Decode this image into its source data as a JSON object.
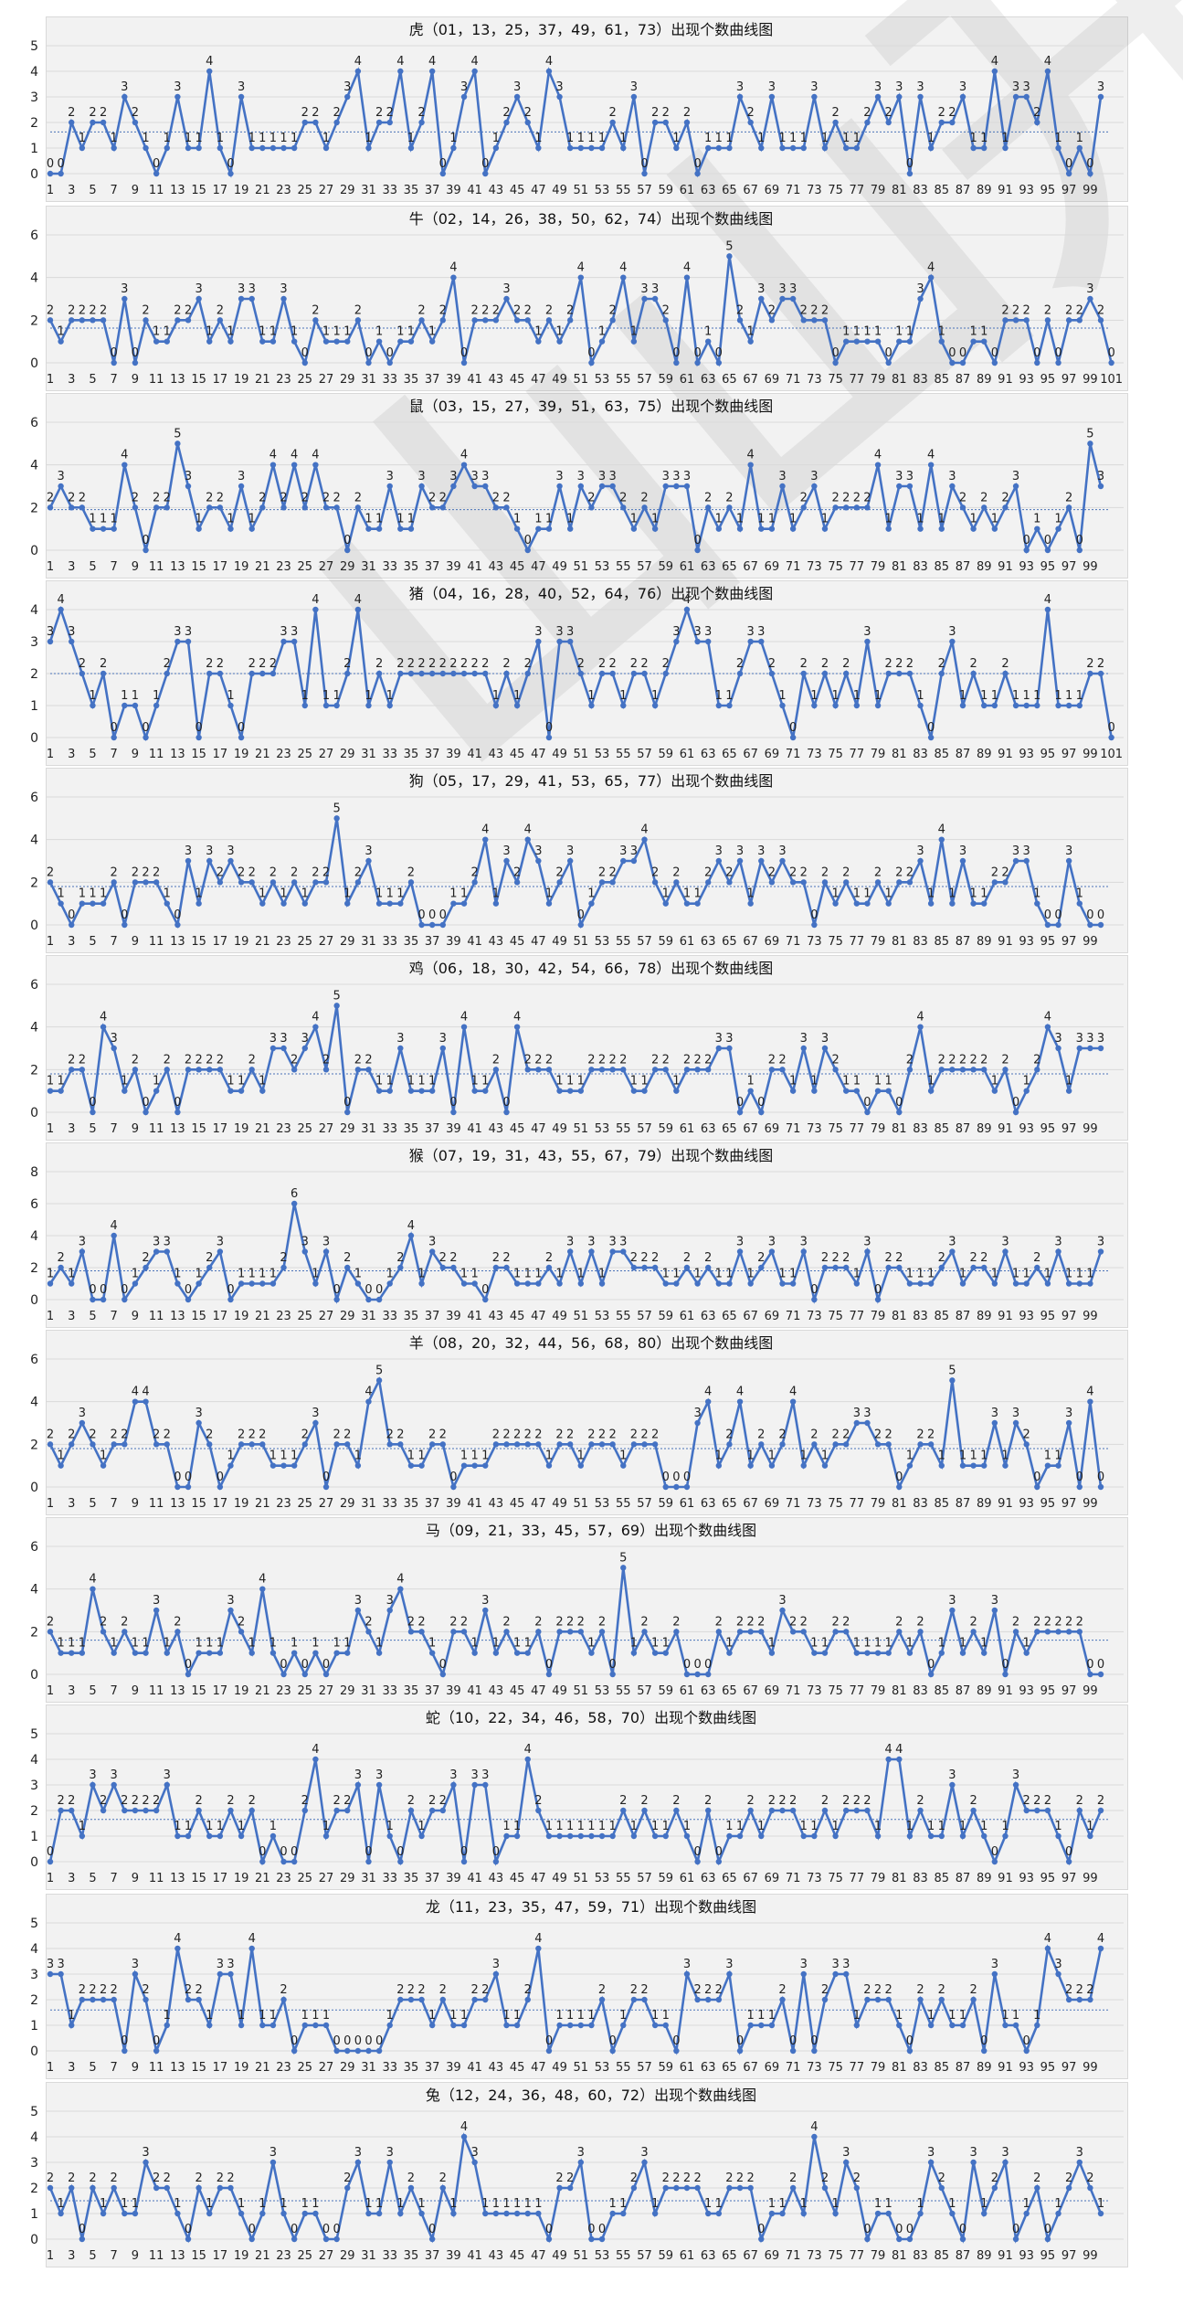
{
  "watermark": "山山开奖",
  "chart_data": [
    {
      "type": "line",
      "title": "虎（01，13，25，37，49，61，73）出现个数曲线图",
      "ylim": [
        0,
        5
      ],
      "yticks": [
        0,
        1,
        2,
        3,
        4,
        5
      ],
      "avg": 1.63,
      "values": [
        0,
        0,
        2,
        1,
        2,
        2,
        1,
        3,
        2,
        1,
        0,
        1,
        3,
        1,
        1,
        4,
        1,
        0,
        3,
        1,
        1,
        1,
        1,
        1,
        2,
        2,
        1,
        2,
        3,
        4,
        1,
        2,
        2,
        4,
        1,
        2,
        4,
        0,
        1,
        3,
        4,
        0,
        1,
        2,
        3,
        2,
        1,
        4,
        3,
        1,
        1,
        1,
        1,
        2,
        1,
        3,
        0,
        2,
        2,
        1,
        2,
        0,
        1,
        1,
        1,
        3,
        2,
        1,
        3,
        1,
        1,
        1,
        3,
        1,
        2,
        1,
        1,
        2,
        3,
        2,
        3,
        0,
        3,
        1,
        2,
        2,
        3,
        1,
        1,
        4,
        1,
        3,
        3,
        2,
        4,
        1,
        0,
        1,
        0,
        3
      ]
    },
    {
      "type": "line",
      "title": "牛（02，14，26，38，50，62，74）出现个数曲线图",
      "ylim": [
        0,
        6
      ],
      "yticks": [
        0,
        2,
        4,
        6
      ],
      "avg": 1.63,
      "values": [
        2,
        1,
        2,
        2,
        2,
        2,
        0,
        3,
        0,
        2,
        1,
        1,
        2,
        2,
        3,
        1,
        2,
        1,
        3,
        3,
        1,
        1,
        3,
        1,
        0,
        2,
        1,
        1,
        1,
        2,
        0,
        1,
        0,
        1,
        1,
        2,
        1,
        2,
        4,
        0,
        2,
        2,
        2,
        3,
        2,
        2,
        1,
        2,
        1,
        2,
        4,
        0,
        1,
        2,
        4,
        1,
        3,
        3,
        2,
        0,
        4,
        0,
        1,
        0,
        5,
        2,
        1,
        3,
        2,
        3,
        3,
        2,
        2,
        2,
        0,
        1,
        1,
        1,
        1,
        0,
        1,
        1,
        3,
        4,
        1,
        0,
        0,
        1,
        1,
        0,
        2,
        2,
        2,
        0,
        2,
        0,
        2,
        2,
        3,
        2,
        0
      ]
    },
    {
      "type": "line",
      "title": "鼠（03，15，27，39，51，63，75）出现个数曲线图",
      "ylim": [
        0,
        6
      ],
      "yticks": [
        0,
        2,
        4,
        6
      ],
      "avg": 1.9,
      "values": [
        2,
        3,
        2,
        2,
        1,
        1,
        1,
        4,
        2,
        0,
        2,
        2,
        5,
        3,
        1,
        2,
        2,
        1,
        3,
        1,
        2,
        4,
        2,
        4,
        2,
        4,
        2,
        2,
        0,
        2,
        1,
        1,
        3,
        1,
        1,
        3,
        2,
        2,
        3,
        4,
        3,
        3,
        2,
        2,
        1,
        0,
        1,
        1,
        3,
        1,
        3,
        2,
        3,
        3,
        2,
        1,
        2,
        1,
        3,
        3,
        3,
        0,
        2,
        1,
        2,
        1,
        4,
        1,
        1,
        3,
        1,
        2,
        3,
        1,
        2,
        2,
        2,
        2,
        4,
        1,
        3,
        3,
        1,
        4,
        1,
        3,
        2,
        1,
        2,
        1,
        2,
        3,
        0,
        1,
        0,
        1,
        2,
        0,
        5,
        3
      ]
    },
    {
      "type": "line",
      "title": "猪（04，16，28，40，52，64，76）出现个数曲线图",
      "ylim": [
        0,
        4
      ],
      "yticks": [
        0,
        1,
        2,
        3,
        4
      ],
      "avg": 2,
      "values": [
        3,
        4,
        3,
        2,
        1,
        2,
        0,
        1,
        1,
        0,
        1,
        2,
        3,
        3,
        0,
        2,
        2,
        1,
        0,
        2,
        2,
        2,
        3,
        3,
        1,
        4,
        1,
        1,
        2,
        4,
        1,
        2,
        1,
        2,
        2,
        2,
        2,
        2,
        2,
        2,
        2,
        2,
        1,
        2,
        1,
        2,
        3,
        0,
        3,
        3,
        2,
        1,
        2,
        2,
        1,
        2,
        2,
        1,
        2,
        3,
        4,
        3,
        3,
        1,
        1,
        2,
        3,
        3,
        2,
        1,
        0,
        2,
        1,
        2,
        1,
        2,
        1,
        3,
        1,
        2,
        2,
        2,
        1,
        0,
        2,
        3,
        1,
        2,
        1,
        1,
        2,
        1,
        1,
        1,
        4,
        1,
        1,
        1,
        2,
        2,
        0
      ]
    },
    {
      "type": "line",
      "title": "狗（05，17，29，41，53，65，77）出现个数曲线图",
      "ylim": [
        0,
        6
      ],
      "yticks": [
        0,
        2,
        4,
        6
      ],
      "avg": 1.8,
      "values": [
        2,
        1,
        0,
        1,
        1,
        1,
        2,
        0,
        2,
        2,
        2,
        1,
        0,
        3,
        1,
        3,
        2,
        3,
        2,
        2,
        1,
        2,
        1,
        2,
        1,
        2,
        2,
        5,
        1,
        2,
        3,
        1,
        1,
        1,
        2,
        0,
        0,
        0,
        1,
        1,
        2,
        4,
        1,
        3,
        2,
        4,
        3,
        1,
        2,
        3,
        0,
        1,
        2,
        2,
        3,
        3,
        4,
        2,
        1,
        2,
        1,
        1,
        2,
        3,
        2,
        3,
        1,
        3,
        2,
        3,
        2,
        2,
        0,
        2,
        1,
        2,
        1,
        1,
        2,
        1,
        2,
        2,
        3,
        1,
        4,
        1,
        3,
        1,
        1,
        2,
        2,
        3,
        3,
        1,
        0,
        0,
        3,
        1,
        0,
        0
      ]
    },
    {
      "type": "line",
      "title": "鸡（06，18，30，42，54，66，78）出现个数曲线图",
      "ylim": [
        0,
        6
      ],
      "yticks": [
        0,
        2,
        4,
        6
      ],
      "avg": 1.8,
      "values": [
        1,
        1,
        2,
        2,
        0,
        4,
        3,
        1,
        2,
        0,
        1,
        2,
        0,
        2,
        2,
        2,
        2,
        1,
        1,
        2,
        1,
        3,
        3,
        2,
        3,
        4,
        2,
        5,
        0,
        2,
        2,
        1,
        1,
        3,
        1,
        1,
        1,
        3,
        0,
        4,
        1,
        1,
        2,
        0,
        4,
        2,
        2,
        2,
        1,
        1,
        1,
        2,
        2,
        2,
        2,
        1,
        1,
        2,
        2,
        1,
        2,
        2,
        2,
        3,
        3,
        0,
        1,
        0,
        2,
        2,
        1,
        3,
        1,
        3,
        2,
        1,
        1,
        0,
        1,
        1,
        0,
        2,
        4,
        1,
        2,
        2,
        2,
        2,
        2,
        1,
        2,
        0,
        1,
        2,
        4,
        3,
        1,
        3,
        3,
        3
      ]
    },
    {
      "type": "line",
      "title": "猴（07，19，31，43，55，67，79）出现个数曲线图",
      "ylim": [
        0,
        8
      ],
      "yticks": [
        0,
        2,
        4,
        6,
        8
      ],
      "avg": 1.8,
      "values": [
        1,
        2,
        1,
        3,
        0,
        0,
        4,
        0,
        1,
        2,
        3,
        3,
        1,
        0,
        1,
        2,
        3,
        0,
        1,
        1,
        1,
        1,
        2,
        6,
        3,
        1,
        3,
        0,
        2,
        1,
        0,
        0,
        1,
        2,
        4,
        1,
        3,
        2,
        2,
        1,
        1,
        0,
        2,
        2,
        1,
        1,
        1,
        2,
        1,
        3,
        1,
        3,
        1,
        3,
        3,
        2,
        2,
        2,
        1,
        1,
        2,
        1,
        2,
        1,
        1,
        3,
        1,
        2,
        3,
        1,
        1,
        3,
        0,
        2,
        2,
        2,
        1,
        3,
        0,
        2,
        2,
        1,
        1,
        1,
        2,
        3,
        1,
        2,
        2,
        1,
        3,
        1,
        1,
        2,
        1,
        3,
        1,
        1,
        1,
        3
      ]
    },
    {
      "type": "line",
      "title": "羊（08，20，32，44，56，68，80）出现个数曲线图",
      "ylim": [
        0,
        6
      ],
      "yticks": [
        0,
        2,
        4,
        6
      ],
      "avg": 1.8,
      "values": [
        2,
        1,
        2,
        3,
        2,
        1,
        2,
        2,
        4,
        4,
        2,
        2,
        0,
        0,
        3,
        2,
        0,
        1,
        2,
        2,
        2,
        1,
        1,
        1,
        2,
        3,
        0,
        2,
        2,
        1,
        4,
        5,
        2,
        2,
        1,
        1,
        2,
        2,
        0,
        1,
        1,
        1,
        2,
        2,
        2,
        2,
        2,
        1,
        2,
        2,
        1,
        2,
        2,
        2,
        1,
        2,
        2,
        2,
        0,
        0,
        0,
        3,
        4,
        1,
        2,
        4,
        1,
        2,
        1,
        2,
        4,
        1,
        2,
        1,
        2,
        2,
        3,
        3,
        2,
        2,
        0,
        1,
        2,
        2,
        1,
        5,
        1,
        1,
        1,
        3,
        1,
        3,
        2,
        0,
        1,
        1,
        3,
        0,
        4,
        0
      ]
    },
    {
      "type": "line",
      "title": "马（09，21，33，45，57，69）出现个数曲线图",
      "ylim": [
        0,
        6
      ],
      "yticks": [
        0,
        2,
        4,
        6
      ],
      "avg": 1.6,
      "values": [
        2,
        1,
        1,
        1,
        4,
        2,
        1,
        2,
        1,
        1,
        3,
        1,
        2,
        0,
        1,
        1,
        1,
        3,
        2,
        1,
        4,
        1,
        0,
        1,
        0,
        1,
        0,
        1,
        1,
        3,
        2,
        1,
        3,
        4,
        2,
        2,
        1,
        0,
        2,
        2,
        1,
        3,
        1,
        2,
        1,
        1,
        2,
        0,
        2,
        2,
        2,
        1,
        2,
        0,
        5,
        1,
        2,
        1,
        1,
        2,
        0,
        0,
        0,
        2,
        1,
        2,
        2,
        2,
        1,
        3,
        2,
        2,
        1,
        1,
        2,
        2,
        1,
        1,
        1,
        1,
        2,
        1,
        2,
        0,
        1,
        3,
        1,
        2,
        1,
        3,
        0,
        2,
        1,
        2,
        2,
        2,
        2,
        2,
        0,
        0
      ]
    },
    {
      "type": "line",
      "title": "蛇（10，22，34，46，58，70）出现个数曲线图",
      "ylim": [
        0,
        5
      ],
      "yticks": [
        0,
        1,
        2,
        3,
        4,
        5
      ],
      "avg": 1.65,
      "values": [
        0,
        2,
        2,
        1,
        3,
        2,
        3,
        2,
        2,
        2,
        2,
        3,
        1,
        1,
        2,
        1,
        1,
        2,
        1,
        2,
        0,
        1,
        0,
        0,
        2,
        4,
        1,
        2,
        2,
        3,
        0,
        3,
        1,
        0,
        2,
        1,
        2,
        2,
        3,
        0,
        3,
        3,
        0,
        1,
        1,
        4,
        2,
        1,
        1,
        1,
        1,
        1,
        1,
        1,
        2,
        1,
        2,
        1,
        1,
        2,
        1,
        0,
        2,
        0,
        1,
        1,
        2,
        1,
        2,
        2,
        2,
        1,
        1,
        2,
        1,
        2,
        2,
        2,
        1,
        4,
        4,
        1,
        2,
        1,
        1,
        3,
        1,
        2,
        1,
        0,
        1,
        3,
        2,
        2,
        2,
        1,
        0,
        2,
        1,
        2
      ]
    },
    {
      "type": "line",
      "title": "龙（11，23，35，47，59，71）出现个数曲线图",
      "ylim": [
        0,
        5
      ],
      "yticks": [
        0,
        1,
        2,
        3,
        4,
        5
      ],
      "avg": 1.6,
      "values": [
        3,
        3,
        1,
        2,
        2,
        2,
        2,
        0,
        3,
        2,
        0,
        1,
        4,
        2,
        2,
        1,
        3,
        3,
        1,
        4,
        1,
        1,
        2,
        0,
        1,
        1,
        1,
        0,
        0,
        0,
        0,
        0,
        1,
        2,
        2,
        2,
        1,
        2,
        1,
        1,
        2,
        2,
        3,
        1,
        1,
        2,
        4,
        0,
        1,
        1,
        1,
        1,
        2,
        0,
        1,
        2,
        2,
        1,
        1,
        0,
        3,
        2,
        2,
        2,
        3,
        0,
        1,
        1,
        1,
        2,
        0,
        3,
        0,
        2,
        3,
        3,
        1,
        2,
        2,
        2,
        1,
        0,
        2,
        1,
        2,
        1,
        1,
        2,
        0,
        3,
        1,
        1,
        0,
        1,
        4,
        3,
        2,
        2,
        2,
        4
      ]
    },
    {
      "type": "line",
      "title": "兔（12，24，36，48，60，72）出现个数曲线图",
      "ylim": [
        0,
        5
      ],
      "yticks": [
        0,
        1,
        2,
        3,
        4,
        5
      ],
      "avg": 1.5,
      "values": [
        2,
        1,
        2,
        0,
        2,
        1,
        2,
        1,
        1,
        3,
        2,
        2,
        1,
        0,
        2,
        1,
        2,
        2,
        1,
        0,
        1,
        3,
        1,
        0,
        1,
        1,
        0,
        0,
        2,
        3,
        1,
        1,
        3,
        1,
        2,
        1,
        0,
        2,
        1,
        4,
        3,
        1,
        1,
        1,
        1,
        1,
        1,
        0,
        2,
        2,
        3,
        0,
        0,
        1,
        1,
        2,
        3,
        1,
        2,
        2,
        2,
        2,
        1,
        1,
        2,
        2,
        2,
        0,
        1,
        1,
        2,
        1,
        4,
        2,
        1,
        3,
        2,
        0,
        1,
        1,
        0,
        0,
        1,
        3,
        2,
        1,
        0,
        3,
        1,
        2,
        3,
        0,
        1,
        2,
        0,
        1,
        2,
        3,
        2,
        1
      ]
    }
  ]
}
